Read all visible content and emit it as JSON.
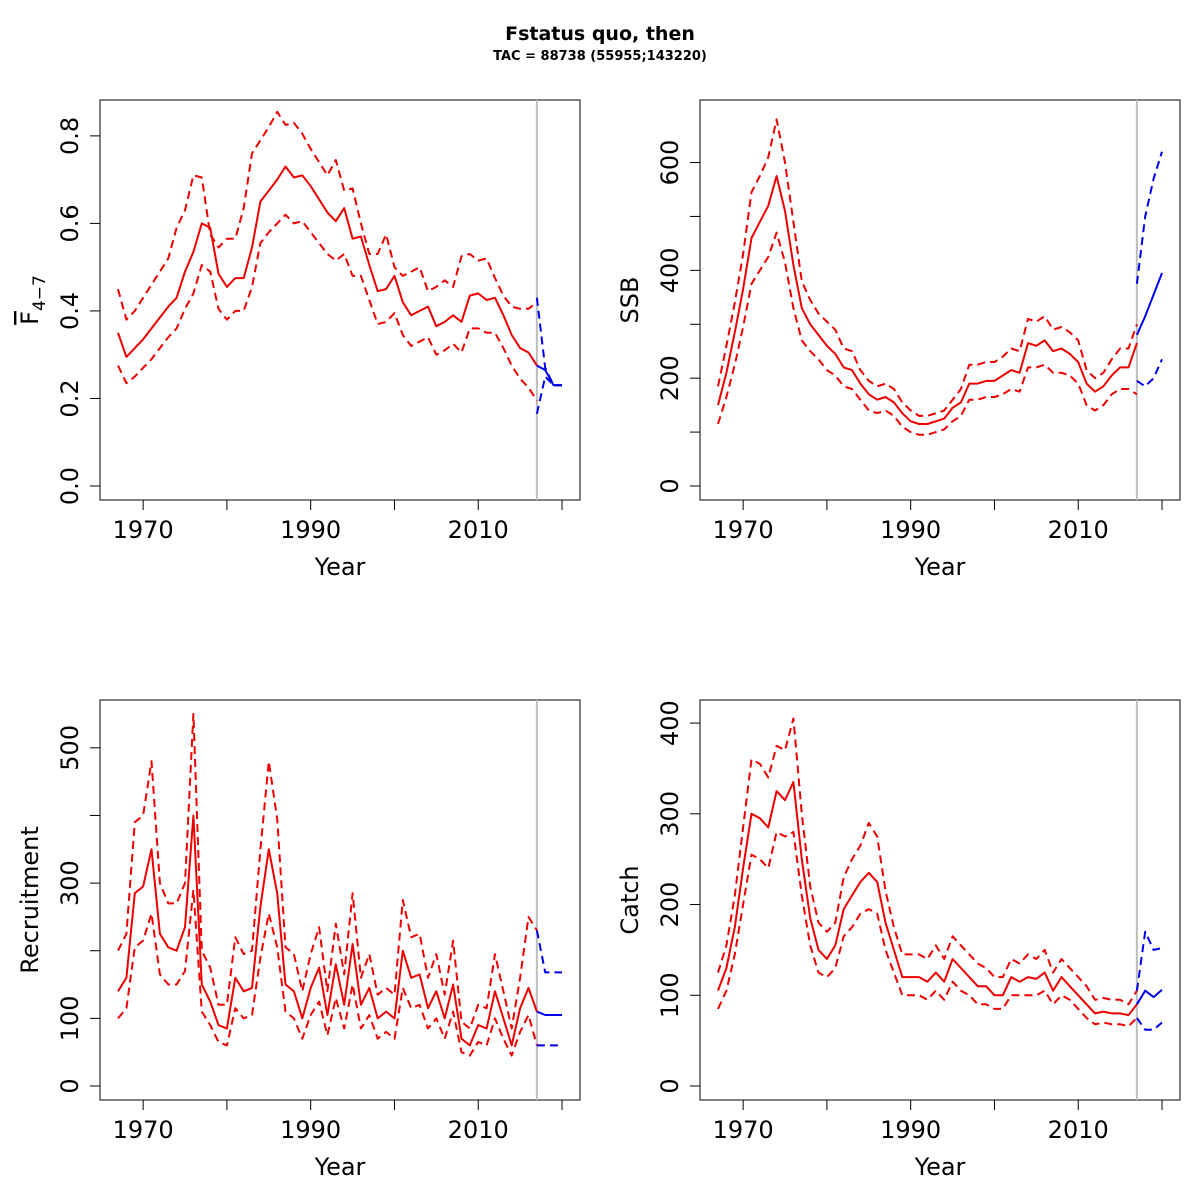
{
  "figure": {
    "title": "Fstatus quo, then",
    "subtitle": "TAC = 88738 (55955;143220)"
  },
  "colors": {
    "history": "#ee0000",
    "forecast": "#0000ee",
    "divider": "#bebebe"
  },
  "chart_data": [
    {
      "type": "line",
      "xlabel": "Year",
      "ylabel": "F",
      "ylabel_sub": "4-7",
      "xlim": [
        1967,
        2020
      ],
      "ylim": [
        0,
        0.85
      ],
      "xticks": [
        1970,
        1980,
        1990,
        2000,
        2010,
        2020
      ],
      "xtick_labels": [
        "1970",
        "",
        "1990",
        "",
        "2010",
        ""
      ],
      "yticks": [
        0,
        0.2,
        0.4,
        0.6,
        0.8
      ],
      "ytick_labels": [
        "0.0",
        "0.2",
        "0.4",
        "0.6",
        "0.8"
      ],
      "divider_year": 2017,
      "x": [
        1967,
        1968,
        1969,
        1970,
        1971,
        1972,
        1973,
        1974,
        1975,
        1976,
        1977,
        1978,
        1979,
        1980,
        1981,
        1982,
        1983,
        1984,
        1985,
        1986,
        1987,
        1988,
        1989,
        1990,
        1991,
        1992,
        1993,
        1994,
        1995,
        1996,
        1997,
        1998,
        1999,
        2000,
        2001,
        2002,
        2003,
        2004,
        2005,
        2006,
        2007,
        2008,
        2009,
        2010,
        2011,
        2012,
        2013,
        2014,
        2015,
        2016,
        2017
      ],
      "estimate": [
        0.35,
        0.295,
        0.315,
        0.335,
        0.36,
        0.385,
        0.41,
        0.43,
        0.49,
        0.535,
        0.6,
        0.59,
        0.485,
        0.455,
        0.475,
        0.475,
        0.545,
        0.65,
        0.675,
        0.7,
        0.73,
        0.705,
        0.71,
        0.685,
        0.655,
        0.625,
        0.605,
        0.635,
        0.565,
        0.57,
        0.505,
        0.445,
        0.45,
        0.48,
        0.42,
        0.39,
        0.4,
        0.41,
        0.365,
        0.375,
        0.39,
        0.375,
        0.435,
        0.44,
        0.425,
        0.43,
        0.39,
        0.345,
        0.315,
        0.305,
        0.275
      ],
      "upper": [
        0.45,
        0.38,
        0.4,
        0.43,
        0.46,
        0.49,
        0.52,
        0.59,
        0.63,
        0.71,
        0.705,
        0.575,
        0.545,
        0.565,
        0.565,
        0.635,
        0.76,
        0.79,
        0.82,
        0.855,
        0.825,
        0.83,
        0.805,
        0.77,
        0.74,
        0.71,
        0.745,
        0.675,
        0.68,
        0.6,
        0.53,
        0.53,
        0.575,
        0.5,
        0.48,
        0.49,
        0.5,
        0.445,
        0.455,
        0.47,
        0.455,
        0.525,
        0.53,
        0.515,
        0.52,
        0.475,
        0.435,
        0.41,
        0.405,
        0.405,
        0.42
      ],
      "lower": [
        0.275,
        0.235,
        0.25,
        0.27,
        0.29,
        0.315,
        0.34,
        0.36,
        0.405,
        0.44,
        0.505,
        0.49,
        0.405,
        0.38,
        0.4,
        0.4,
        0.455,
        0.555,
        0.58,
        0.6,
        0.62,
        0.6,
        0.605,
        0.58,
        0.555,
        0.53,
        0.515,
        0.53,
        0.48,
        0.48,
        0.425,
        0.37,
        0.375,
        0.395,
        0.345,
        0.32,
        0.33,
        0.34,
        0.3,
        0.31,
        0.325,
        0.305,
        0.36,
        0.36,
        0.35,
        0.35,
        0.315,
        0.275,
        0.245,
        0.225,
        0.195
      ],
      "forecast_x": [
        2017,
        2018,
        2019,
        2020
      ],
      "forecast": [
        0.275,
        0.265,
        0.23,
        0.23
      ],
      "forecast_upper": [
        0.43,
        0.27,
        0.23,
        0.23
      ],
      "forecast_lower": [
        0.165,
        0.25,
        0.23,
        0.23
      ]
    },
    {
      "type": "line",
      "xlabel": "Year",
      "ylabel": "SSB",
      "xlim": [
        1967,
        2020
      ],
      "ylim": [
        0,
        690
      ],
      "xticks": [
        1970,
        1980,
        1990,
        2000,
        2010,
        2020
      ],
      "xtick_labels": [
        "1970",
        "",
        "1990",
        "",
        "2010",
        ""
      ],
      "yticks": [
        0,
        100,
        200,
        300,
        400,
        500,
        600
      ],
      "ytick_labels": [
        "0",
        "",
        "200",
        "",
        "400",
        "",
        "600"
      ],
      "divider_year": 2017,
      "x": [
        1967,
        1968,
        1969,
        1970,
        1971,
        1972,
        1973,
        1974,
        1975,
        1976,
        1977,
        1978,
        1979,
        1980,
        1981,
        1982,
        1983,
        1984,
        1985,
        1986,
        1987,
        1988,
        1989,
        1990,
        1991,
        1992,
        1993,
        1994,
        1995,
        1996,
        1997,
        1998,
        1999,
        2000,
        2001,
        2002,
        2003,
        2004,
        2005,
        2006,
        2007,
        2008,
        2009,
        2010,
        2011,
        2012,
        2013,
        2014,
        2015,
        2016,
        2017
      ],
      "estimate": [
        150,
        210,
        285,
        365,
        460,
        490,
        520,
        575,
        510,
        410,
        330,
        300,
        280,
        260,
        245,
        220,
        215,
        190,
        170,
        160,
        165,
        155,
        135,
        120,
        115,
        115,
        120,
        125,
        145,
        155,
        190,
        190,
        195,
        195,
        205,
        215,
        210,
        265,
        260,
        270,
        250,
        255,
        245,
        230,
        190,
        175,
        185,
        205,
        220,
        220,
        265
      ],
      "upper": [
        185,
        260,
        340,
        430,
        545,
        575,
        610,
        680,
        600,
        490,
        380,
        345,
        320,
        305,
        290,
        255,
        250,
        215,
        195,
        185,
        190,
        180,
        155,
        140,
        130,
        130,
        135,
        140,
        160,
        180,
        225,
        225,
        230,
        230,
        240,
        255,
        250,
        310,
        305,
        315,
        290,
        295,
        285,
        270,
        215,
        200,
        210,
        235,
        255,
        255,
        300
      ],
      "lower": [
        115,
        165,
        225,
        295,
        375,
        400,
        425,
        470,
        415,
        330,
        270,
        250,
        235,
        215,
        205,
        185,
        180,
        160,
        140,
        135,
        140,
        130,
        110,
        100,
        95,
        95,
        100,
        105,
        120,
        130,
        160,
        160,
        165,
        165,
        170,
        180,
        175,
        220,
        220,
        225,
        210,
        210,
        205,
        190,
        150,
        140,
        150,
        170,
        180,
        180,
        170
      ],
      "forecast_x": [
        2017,
        2018,
        2019,
        2020
      ],
      "forecast": [
        280,
        315,
        355,
        395
      ],
      "forecast_upper": [
        375,
        500,
        570,
        620
      ],
      "forecast_lower": [
        195,
        185,
        200,
        235
      ]
    },
    {
      "type": "line",
      "xlabel": "Year",
      "ylabel": "Recruitment",
      "xlim": [
        1967,
        2020
      ],
      "ylim": [
        0,
        550
      ],
      "xticks": [
        1970,
        1980,
        1990,
        2000,
        2010,
        2020
      ],
      "xtick_labels": [
        "1970",
        "",
        "1990",
        "",
        "2010",
        ""
      ],
      "yticks": [
        0,
        100,
        200,
        300,
        400,
        500
      ],
      "ytick_labels": [
        "0",
        "100",
        "",
        "300",
        "",
        "500"
      ],
      "divider_year": 2017,
      "x": [
        1967,
        1968,
        1969,
        1970,
        1971,
        1972,
        1973,
        1974,
        1975,
        1976,
        1977,
        1978,
        1979,
        1980,
        1981,
        1982,
        1983,
        1984,
        1985,
        1986,
        1987,
        1988,
        1989,
        1990,
        1991,
        1992,
        1993,
        1994,
        1995,
        1996,
        1997,
        1998,
        1999,
        2000,
        2001,
        2002,
        2003,
        2004,
        2005,
        2006,
        2007,
        2008,
        2009,
        2010,
        2011,
        2012,
        2013,
        2014,
        2015,
        2016,
        2017
      ],
      "estimate": [
        140,
        160,
        285,
        295,
        350,
        225,
        205,
        200,
        235,
        400,
        150,
        125,
        90,
        85,
        160,
        140,
        145,
        265,
        350,
        285,
        150,
        140,
        100,
        145,
        175,
        105,
        180,
        120,
        210,
        120,
        145,
        100,
        110,
        100,
        200,
        160,
        165,
        115,
        140,
        100,
        150,
        70,
        60,
        90,
        85,
        140,
        100,
        60,
        115,
        145,
        110
      ],
      "upper": [
        200,
        225,
        390,
        400,
        480,
        300,
        270,
        270,
        300,
        550,
        200,
        175,
        120,
        120,
        220,
        195,
        200,
        350,
        480,
        395,
        205,
        195,
        140,
        195,
        235,
        140,
        240,
        165,
        285,
        160,
        195,
        135,
        145,
        135,
        275,
        220,
        225,
        160,
        195,
        135,
        215,
        95,
        85,
        120,
        115,
        195,
        140,
        85,
        160,
        250,
        230
      ],
      "lower": [
        100,
        115,
        205,
        215,
        255,
        165,
        150,
        150,
        170,
        290,
        110,
        90,
        65,
        60,
        115,
        100,
        105,
        190,
        255,
        205,
        110,
        100,
        70,
        105,
        125,
        75,
        130,
        85,
        150,
        85,
        105,
        70,
        80,
        70,
        145,
        115,
        120,
        85,
        100,
        70,
        110,
        50,
        45,
        65,
        60,
        100,
        70,
        45,
        80,
        105,
        60
      ],
      "forecast_x": [
        2017,
        2018,
        2019,
        2020
      ],
      "forecast": [
        110,
        105,
        105,
        105
      ],
      "forecast_upper": [
        230,
        168,
        168,
        168
      ],
      "forecast_lower": [
        60,
        60,
        60,
        60
      ]
    },
    {
      "type": "line",
      "xlabel": "Year",
      "ylabel": "Catch",
      "xlim": [
        1967,
        2020
      ],
      "ylim": [
        0,
        410
      ],
      "xticks": [
        1970,
        1980,
        1990,
        2000,
        2010,
        2020
      ],
      "xtick_labels": [
        "1970",
        "",
        "1990",
        "",
        "2010",
        ""
      ],
      "yticks": [
        0,
        100,
        200,
        300,
        400
      ],
      "ytick_labels": [
        "0",
        "100",
        "200",
        "300",
        "400"
      ],
      "divider_year": 2017,
      "x": [
        1967,
        1968,
        1969,
        1970,
        1971,
        1972,
        1973,
        1974,
        1975,
        1976,
        1977,
        1978,
        1979,
        1980,
        1981,
        1982,
        1983,
        1984,
        1985,
        1986,
        1987,
        1988,
        1989,
        1990,
        1991,
        1992,
        1993,
        1994,
        1995,
        1996,
        1997,
        1998,
        1999,
        2000,
        2001,
        2002,
        2003,
        2004,
        2005,
        2006,
        2007,
        2008,
        2009,
        2010,
        2011,
        2012,
        2013,
        2014,
        2015,
        2016,
        2017
      ],
      "estimate": [
        105,
        130,
        175,
        240,
        300,
        295,
        285,
        325,
        315,
        335,
        250,
        185,
        150,
        140,
        155,
        195,
        210,
        225,
        235,
        225,
        180,
        150,
        120,
        120,
        120,
        115,
        125,
        115,
        140,
        130,
        120,
        110,
        110,
        100,
        100,
        120,
        115,
        120,
        118,
        125,
        105,
        120,
        110,
        100,
        90,
        80,
        82,
        80,
        80,
        78,
        90
      ],
      "upper": [
        125,
        155,
        210,
        285,
        360,
        355,
        340,
        375,
        370,
        405,
        300,
        220,
        180,
        170,
        180,
        230,
        250,
        265,
        290,
        275,
        215,
        175,
        145,
        145,
        145,
        140,
        155,
        140,
        165,
        155,
        145,
        135,
        130,
        120,
        120,
        140,
        135,
        145,
        140,
        150,
        125,
        140,
        130,
        120,
        110,
        95,
        97,
        95,
        95,
        90,
        105
      ],
      "lower": [
        85,
        105,
        145,
        200,
        255,
        250,
        240,
        280,
        275,
        280,
        210,
        155,
        125,
        120,
        130,
        165,
        175,
        190,
        195,
        190,
        150,
        125,
        100,
        100,
        100,
        95,
        105,
        95,
        115,
        105,
        100,
        90,
        90,
        85,
        85,
        100,
        100,
        100,
        100,
        105,
        90,
        100,
        95,
        85,
        75,
        68,
        70,
        68,
        68,
        66,
        75
      ],
      "forecast_x": [
        2017,
        2018,
        2019,
        2020
      ],
      "forecast": [
        90,
        105,
        98,
        106
      ],
      "forecast_upper": [
        105,
        170,
        150,
        152
      ],
      "forecast_lower": [
        75,
        62,
        62,
        70
      ]
    }
  ]
}
